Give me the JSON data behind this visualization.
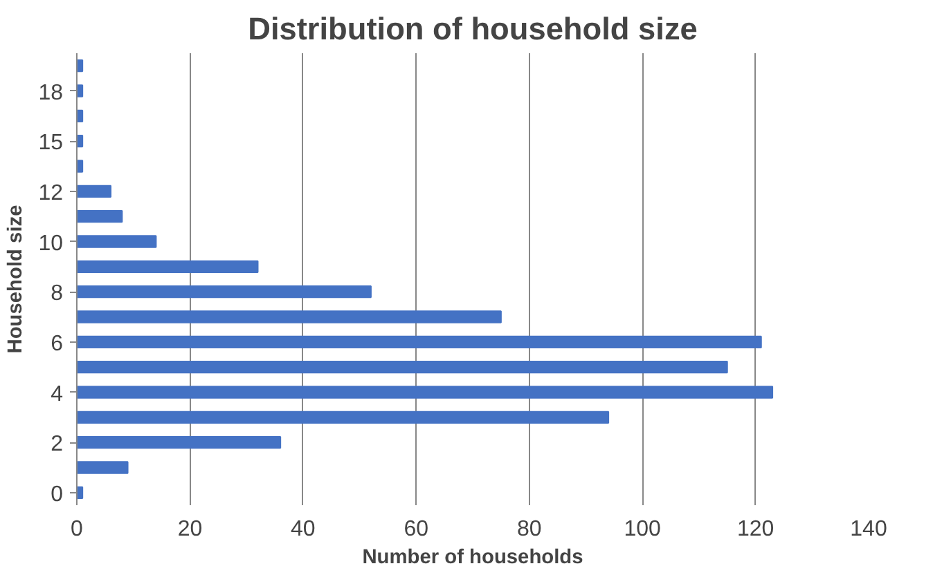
{
  "chart_data": {
    "type": "bar",
    "orientation": "horizontal",
    "title": "Distribution of household size",
    "xlabel": "Number of households",
    "ylabel": "Household size",
    "categories": [
      null,
      "18",
      null,
      "15",
      null,
      "12",
      null,
      "10",
      null,
      "8",
      null,
      "6",
      null,
      "4",
      null,
      "2",
      null,
      "0"
    ],
    "values": [
      1,
      1,
      1,
      1,
      1,
      6,
      8,
      14,
      32,
      52,
      75,
      121,
      115,
      123,
      94,
      36,
      9,
      1
    ],
    "color": "#4472c4",
    "xlim": [
      0,
      140
    ],
    "xticks": [
      0,
      20,
      40,
      60,
      80,
      100,
      120,
      140
    ],
    "grid": "x"
  }
}
